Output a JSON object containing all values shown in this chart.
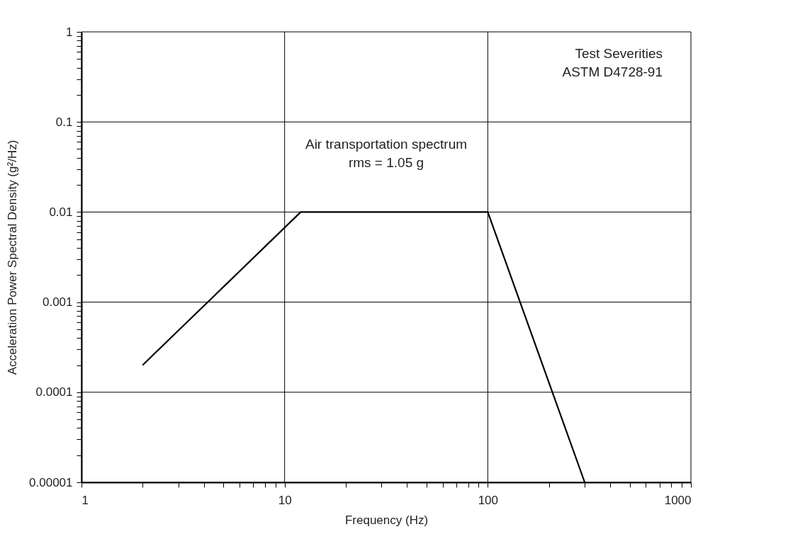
{
  "chart_data": {
    "type": "line",
    "xlabel": "Frequency (Hz)",
    "ylabel": "Acceleration Power Spectral Density (g²/Hz)",
    "x": [
      2,
      12,
      100,
      300
    ],
    "series": [
      {
        "color": "#000000",
        "values": [
          0.0002,
          0.01,
          0.01,
          1e-05
        ]
      }
    ],
    "log": "xy",
    "grid": true,
    "marker": "none",
    "line_style": "solid",
    "xlim": [
      1,
      1000
    ],
    "ylim": [
      1e-05,
      1
    ],
    "xticks": [
      1,
      {
        "value": 2,
        "label": null
      },
      {
        "value": 3,
        "label": null
      },
      {
        "value": 4,
        "label": null
      },
      {
        "value": 5,
        "label": null
      },
      {
        "value": 6,
        "label": null
      },
      {
        "value": 7,
        "label": null
      },
      {
        "value": 8,
        "label": null
      },
      {
        "value": 9,
        "label": null
      },
      10,
      {
        "value": 20,
        "label": null
      },
      {
        "value": 30,
        "label": null
      },
      {
        "value": 40,
        "label": null
      },
      {
        "value": 50,
        "label": null
      },
      {
        "value": 60,
        "label": null
      },
      {
        "value": 70,
        "label": null
      },
      {
        "value": 80,
        "label": null
      },
      {
        "value": 90,
        "label": null
      },
      100,
      {
        "value": 200,
        "label": null
      },
      {
        "value": 300,
        "label": null
      },
      {
        "value": 400,
        "label": null
      },
      {
        "value": 500,
        "label": null
      },
      {
        "value": 600,
        "label": null
      },
      {
        "value": 700,
        "label": null
      },
      {
        "value": 800,
        "label": null
      },
      {
        "value": 900,
        "label": null
      },
      1000
    ],
    "yticks": [
      {
        "value": 1e-05,
        "label": "0.00001"
      },
      {
        "value": 2e-05,
        "label": null
      },
      {
        "value": 3e-05,
        "label": null
      },
      {
        "value": 4e-05,
        "label": null
      },
      {
        "value": 5e-05,
        "label": null
      },
      {
        "value": 6e-05,
        "label": null
      },
      {
        "value": 7e-05,
        "label": null
      },
      {
        "value": 8e-05,
        "label": null
      },
      {
        "value": 9e-05,
        "label": null
      },
      0.0001,
      {
        "value": 0.0002,
        "label": null
      },
      {
        "value": 0.0003,
        "label": null
      },
      {
        "value": 0.0004,
        "label": null
      },
      {
        "value": 0.0005,
        "label": null
      },
      {
        "value": 0.0006,
        "label": null
      },
      {
        "value": 0.0007,
        "label": null
      },
      {
        "value": 0.0008,
        "label": null
      },
      {
        "value": 0.0009,
        "label": null
      },
      0.001,
      {
        "value": 0.002,
        "label": null
      },
      {
        "value": 0.003,
        "label": null
      },
      {
        "value": 0.004,
        "label": null
      },
      {
        "value": 0.005,
        "label": null
      },
      {
        "value": 0.006,
        "label": null
      },
      {
        "value": 0.007,
        "label": null
      },
      {
        "value": 0.008,
        "label": null
      },
      {
        "value": 0.009,
        "label": null
      },
      0.01,
      {
        "value": 0.02,
        "label": null
      },
      {
        "value": 0.03,
        "label": null
      },
      {
        "value": 0.04,
        "label": null
      },
      {
        "value": 0.05,
        "label": null
      },
      {
        "value": 0.06,
        "label": null
      },
      {
        "value": 0.07,
        "label": null
      },
      {
        "value": 0.08,
        "label": null
      },
      {
        "value": 0.09,
        "label": null
      },
      0.1,
      {
        "value": 0.2,
        "label": null
      },
      {
        "value": 0.3,
        "label": null
      },
      {
        "value": 0.4,
        "label": null
      },
      {
        "value": 0.5,
        "label": null
      },
      {
        "value": 0.6,
        "label": null
      },
      {
        "value": 0.7,
        "label": null
      },
      {
        "value": 0.8,
        "label": null
      },
      {
        "value": 0.9,
        "label": null
      },
      1
    ],
    "annotations": [
      "Test Severities\nASTM D4728-91",
      "Air transportation spectrum\nrms = 1.05 g"
    ]
  }
}
